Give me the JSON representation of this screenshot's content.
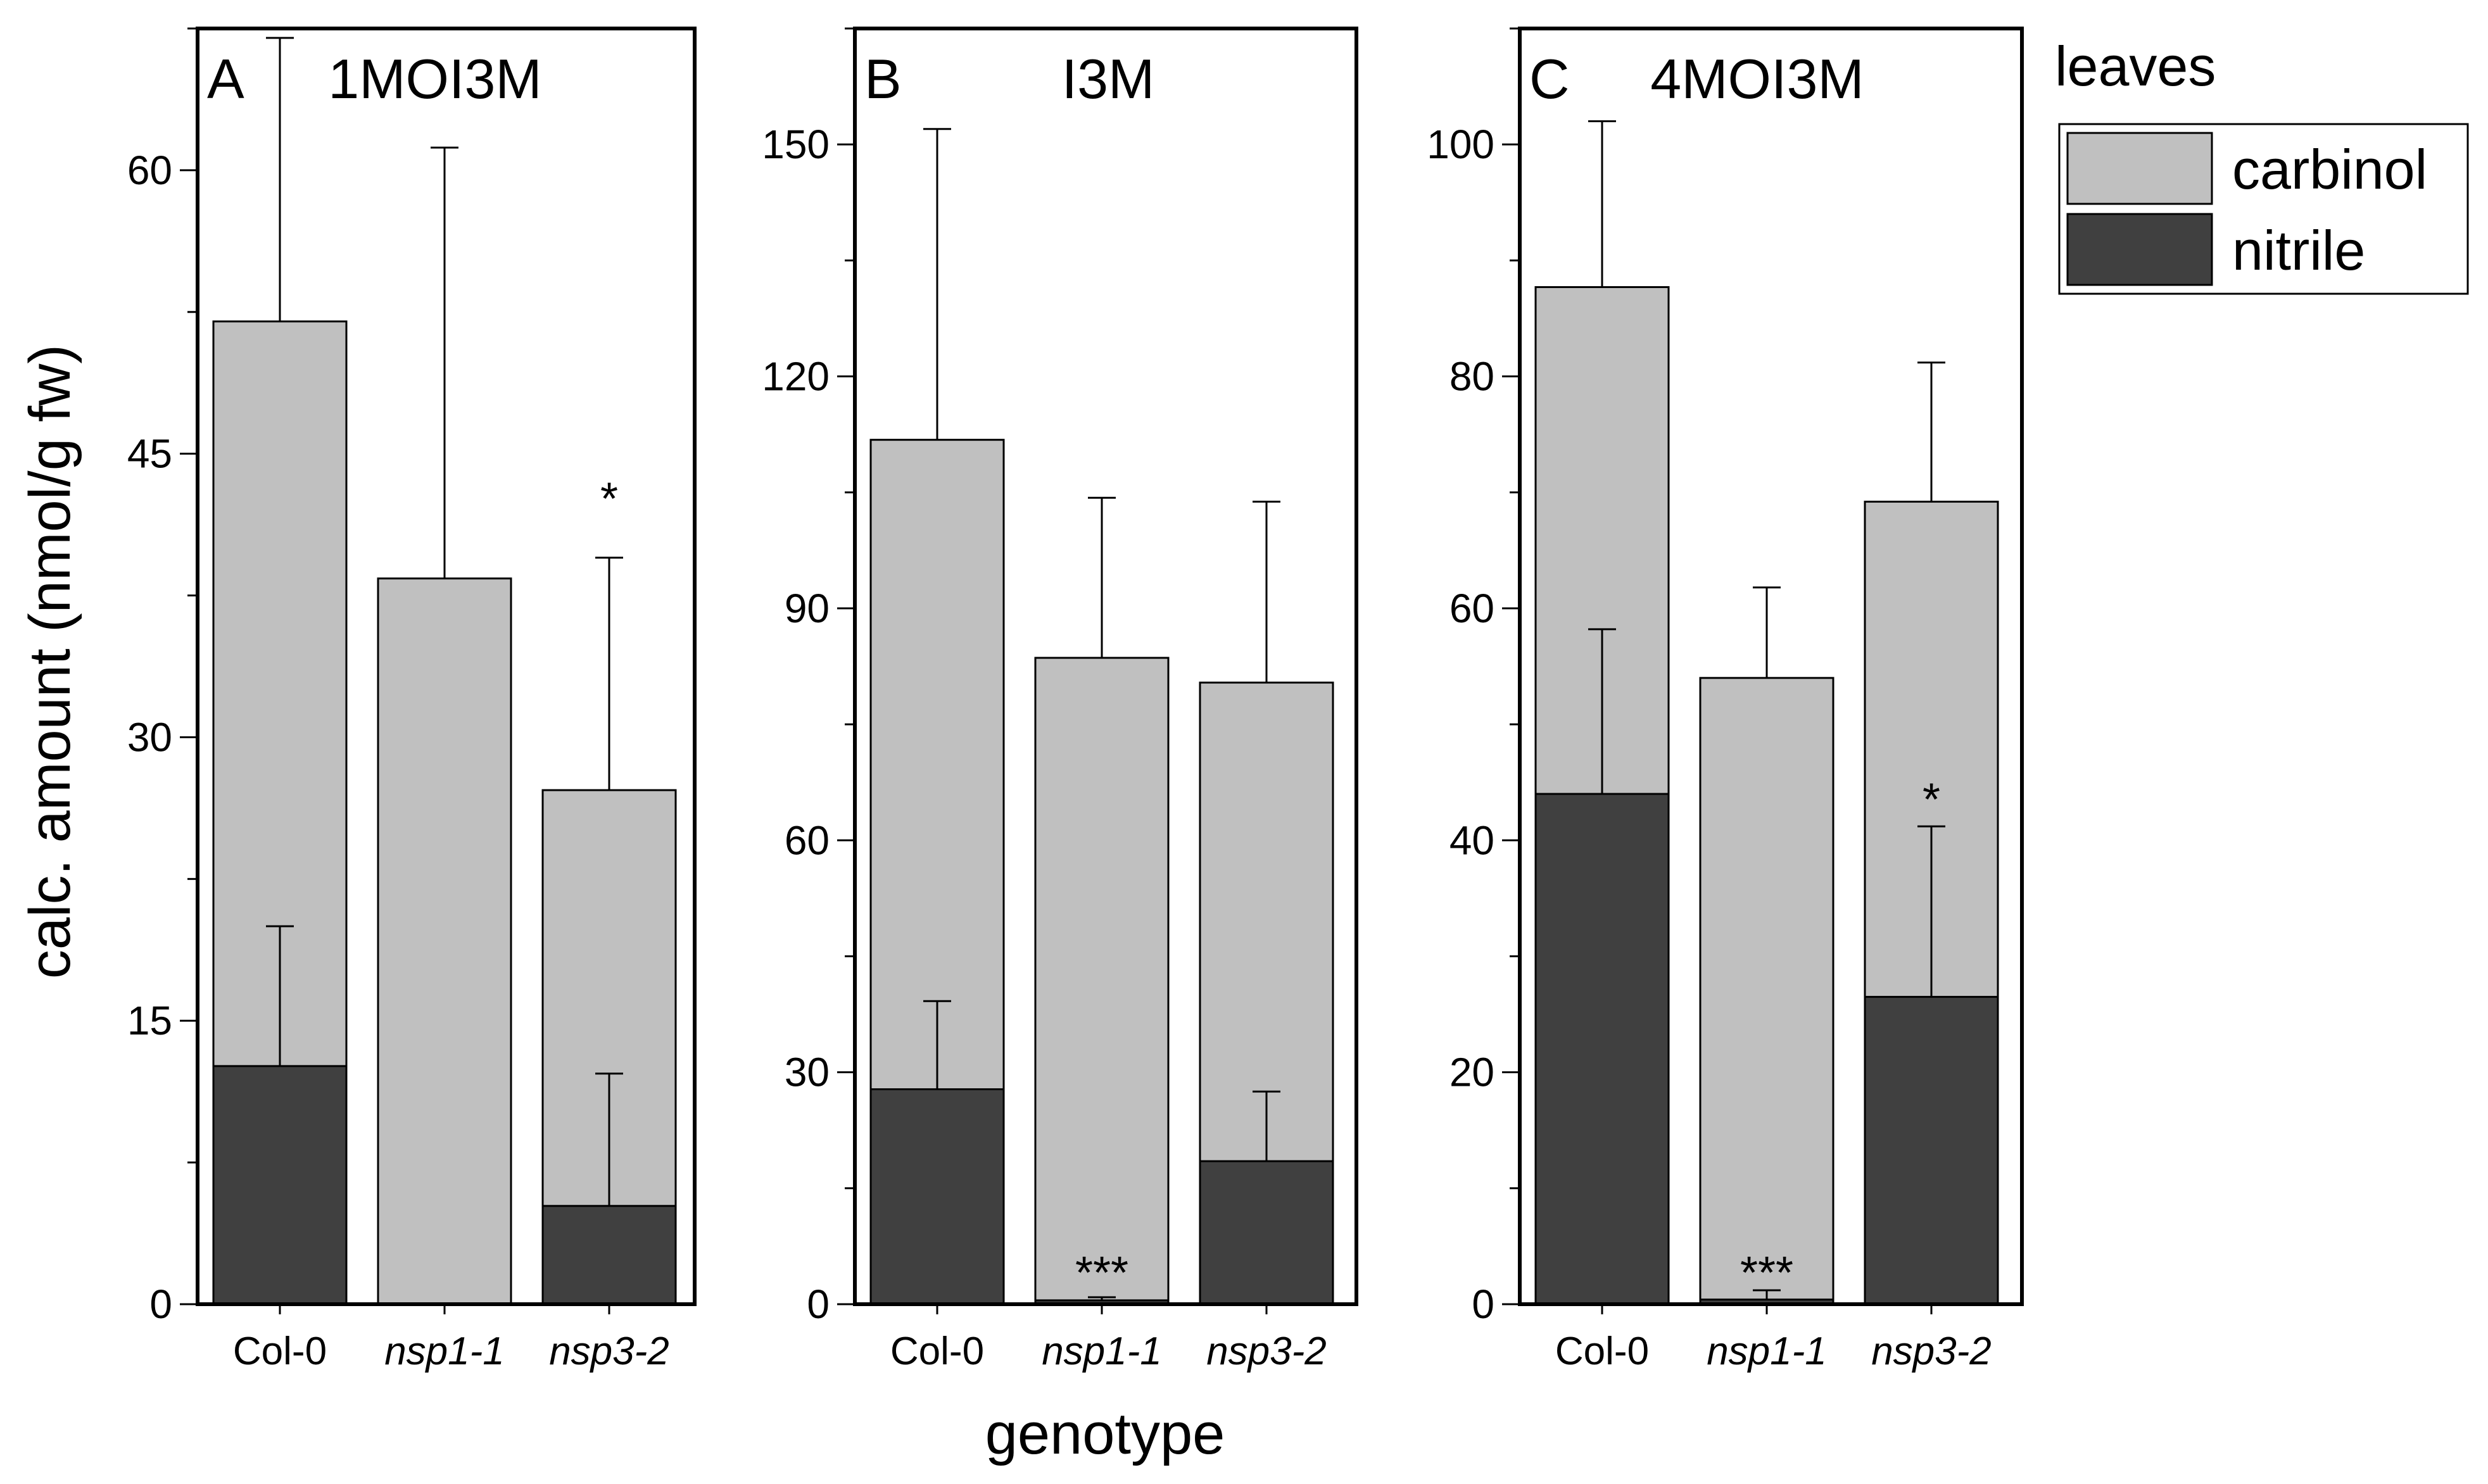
{
  "colors": {
    "carbinol": "#c0c0c0",
    "nitrile": "#404040",
    "axis": "#000000",
    "error_bar": "#000000"
  },
  "chart_data": {
    "type": "bar",
    "stacked": true,
    "ylabel": "calc. amount (nmol/g fw)",
    "xlabel": "genotype",
    "legend": {
      "title": "leaves",
      "placement": "right",
      "entries": [
        {
          "key": "carbinol",
          "label": "carbinol"
        },
        {
          "key": "nitrile",
          "label": "nitrile"
        }
      ]
    },
    "panels": [
      {
        "letter": "A",
        "title": "1MOI3M",
        "categories": [
          {
            "label": "Col-0",
            "italic": false
          },
          {
            "label": "nsp1-1",
            "italic": true
          },
          {
            "label": "nsp3-2",
            "italic": true
          }
        ],
        "ylim": [
          0,
          67.5
        ],
        "yticks": [
          0,
          15,
          30,
          45,
          60
        ],
        "ytick_labels": [
          "0",
          "15",
          "30",
          "45",
          "60"
        ],
        "ytick_minor": [
          7.5,
          22.5,
          37.5,
          52.5,
          67.5
        ],
        "series": [
          {
            "key": "nitrile",
            "name": "nitrile",
            "values": [
              12.6,
              0,
              5.2
            ],
            "error": [
              20.0,
              null,
              12.2
            ]
          },
          {
            "key": "carbinol",
            "name": "carbinol",
            "totals": [
              52.0,
              38.4,
              27.2
            ],
            "error": [
              67.0,
              61.2,
              39.5
            ]
          }
        ],
        "annotations": [
          {
            "category": 2,
            "text": "*",
            "at": 42.8
          }
        ]
      },
      {
        "letter": "B",
        "title": "I3M",
        "categories": [
          {
            "label": "Col-0",
            "italic": false
          },
          {
            "label": "nsp1-1",
            "italic": true
          },
          {
            "label": "nsp3-2",
            "italic": true
          }
        ],
        "ylim": [
          0,
          165
        ],
        "yticks": [
          0,
          30,
          60,
          90,
          120,
          150
        ],
        "ytick_labels": [
          "0",
          "30",
          "60",
          "90",
          "120",
          "150"
        ],
        "ytick_minor": [
          15,
          45,
          75,
          105,
          135,
          165
        ],
        "series": [
          {
            "key": "nitrile",
            "name": "nitrile",
            "values": [
              27.8,
              0.5,
              18.5
            ],
            "error": [
              39.2,
              0.9,
              27.5
            ]
          },
          {
            "key": "carbinol",
            "name": "carbinol",
            "totals": [
              111.8,
              83.6,
              80.4
            ],
            "error": [
              152.0,
              104.3,
              103.8
            ]
          }
        ],
        "annotations": [
          {
            "category": 1,
            "text": "***",
            "at": 4.5
          }
        ]
      },
      {
        "letter": "C",
        "title": "4MOI3M",
        "categories": [
          {
            "label": "Col-0",
            "italic": false
          },
          {
            "label": "nsp1-1",
            "italic": true
          },
          {
            "label": "nsp3-2",
            "italic": true
          }
        ],
        "ylim": [
          0,
          110
        ],
        "yticks": [
          0,
          20,
          40,
          60,
          80,
          100
        ],
        "ytick_labels": [
          "0",
          "20",
          "40",
          "60",
          "80",
          "100"
        ],
        "ytick_minor": [
          10,
          30,
          50,
          70,
          90,
          110
        ],
        "series": [
          {
            "key": "nitrile",
            "name": "nitrile",
            "values": [
              44.0,
              0.4,
              26.5
            ],
            "error": [
              58.2,
              1.2,
              41.2
            ]
          },
          {
            "key": "carbinol",
            "name": "carbinol",
            "totals": [
              87.7,
              54.0,
              69.2
            ],
            "error": [
              102.0,
              61.8,
              81.2
            ]
          }
        ],
        "annotations": [
          {
            "category": 1,
            "text": "***",
            "at": 3.0
          },
          {
            "category": 2,
            "text": "*",
            "at": 43.8
          }
        ]
      }
    ]
  }
}
